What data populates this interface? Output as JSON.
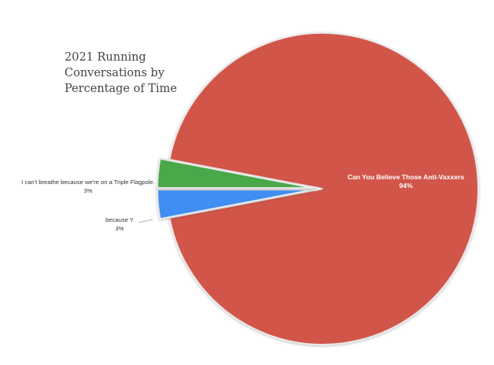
{
  "chart_data": {
    "type": "pie",
    "title_lines": [
      "2021 Running",
      "Conversations by",
      "Percentage of Time"
    ],
    "slices": [
      {
        "label": "Can You Believe Those Anti-Vaxxers",
        "value_label": "94%",
        "value": 94,
        "color": "#d2554a",
        "exploded": false
      },
      {
        "label": "because Y",
        "value_label": "3%",
        "value": 3,
        "color": "#3f8ef3",
        "exploded": true
      },
      {
        "label": "I can't breathe because we're on a Triple Flagpole.",
        "value_label": "3%",
        "value": 3,
        "color": "#48a84a",
        "exploded": true
      }
    ],
    "slice_border_color": "#e9e9e9"
  }
}
